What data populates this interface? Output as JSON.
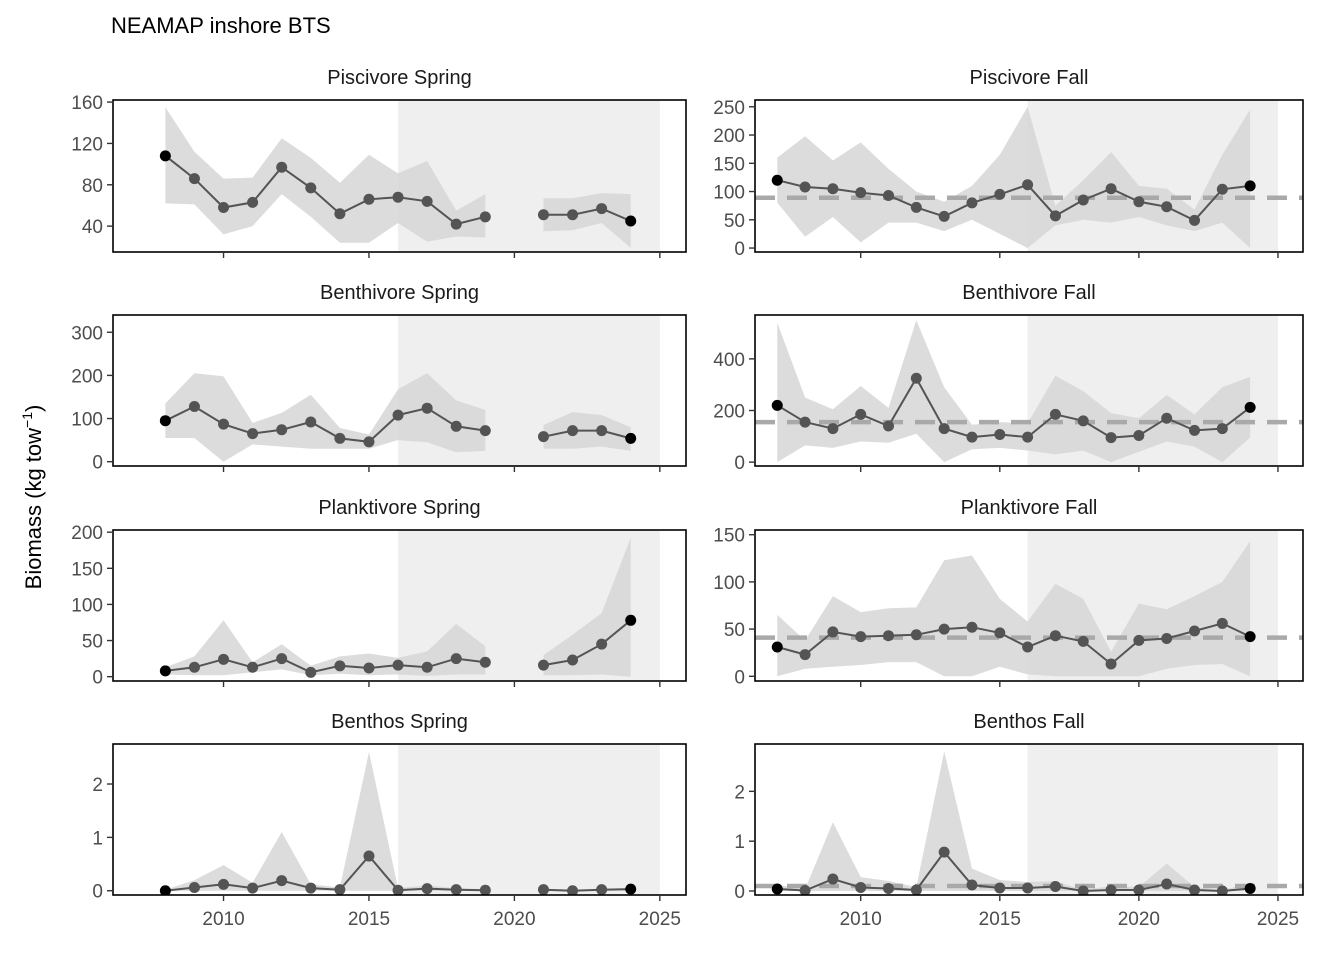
{
  "title": "NEAMAP inshore BTS",
  "y_axis_label": "Biomass (kg tow⁻¹)",
  "colors": {
    "band": "#d6d6d6",
    "recent_shade": "#efefef",
    "line": "#545454",
    "point": "#545454",
    "endpoint": "#000000",
    "mean_line": "#a9a9a9",
    "frame": "#000000"
  },
  "chart_data": [
    {
      "panel": "Piscivore Spring",
      "type": "line",
      "xlim": [
        2006.2,
        2025.9
      ],
      "x_ticks": [
        2010,
        2015,
        2020,
        2025
      ],
      "ylim": [
        15,
        162
      ],
      "y_ticks": [
        40,
        80,
        120,
        160
      ],
      "shade_x": [
        2016,
        2025
      ],
      "mean_line": null,
      "series": [
        {
          "x": [
            2008,
            2009,
            2010,
            2011,
            2012,
            2013,
            2014,
            2015,
            2016,
            2017,
            2018,
            2019
          ],
          "y": [
            108,
            86,
            58,
            63,
            97,
            77,
            52,
            66,
            68,
            64,
            42,
            49
          ],
          "lo": [
            62,
            61,
            32,
            40,
            71,
            49,
            24,
            24,
            43,
            25,
            30,
            29
          ],
          "hi": [
            155,
            112,
            86,
            87,
            125,
            106,
            82,
            109,
            91,
            103,
            55,
            71
          ]
        },
        {
          "x": [
            2021,
            2022,
            2023,
            2024
          ],
          "y": [
            51,
            51,
            57,
            45
          ],
          "lo": [
            35,
            36,
            43,
            19
          ],
          "hi": [
            67,
            67,
            72,
            71
          ]
        }
      ]
    },
    {
      "panel": "Piscivore Fall",
      "type": "line",
      "xlim": [
        2006.2,
        2025.9
      ],
      "x_ticks": [
        2010,
        2015,
        2020,
        2025
      ],
      "ylim": [
        -7,
        262
      ],
      "y_ticks": [
        0,
        50,
        100,
        150,
        200,
        250
      ],
      "shade_x": [
        2016,
        2025
      ],
      "mean_line": 89,
      "series": [
        {
          "x": [
            2007,
            2008,
            2009,
            2010,
            2011,
            2012,
            2013,
            2014,
            2015,
            2016,
            2017,
            2018,
            2019,
            2020,
            2021,
            2022,
            2023,
            2024
          ],
          "y": [
            120,
            108,
            105,
            98,
            93,
            72,
            56,
            80,
            95,
            112,
            57,
            85,
            105,
            82,
            73,
            49,
            104,
            110
          ],
          "lo": [
            80,
            20,
            55,
            10,
            45,
            45,
            30,
            50,
            25,
            0,
            40,
            50,
            45,
            55,
            40,
            30,
            45,
            0
          ],
          "hi": [
            160,
            198,
            155,
            187,
            140,
            100,
            82,
            110,
            165,
            250,
            75,
            120,
            170,
            110,
            105,
            68,
            165,
            245
          ]
        }
      ]
    },
    {
      "panel": "Benthivore Spring",
      "type": "line",
      "xlim": [
        2006.2,
        2025.9
      ],
      "x_ticks": [
        2010,
        2015,
        2020,
        2025
      ],
      "ylim": [
        -10,
        340
      ],
      "y_ticks": [
        0,
        100,
        200,
        300
      ],
      "shade_x": [
        2016,
        2025
      ],
      "mean_line": null,
      "series": [
        {
          "x": [
            2008,
            2009,
            2010,
            2011,
            2012,
            2013,
            2014,
            2015,
            2016,
            2017,
            2018,
            2019
          ],
          "y": [
            95,
            128,
            87,
            65,
            74,
            92,
            54,
            46,
            108,
            124,
            82,
            72
          ],
          "lo": [
            55,
            55,
            0,
            40,
            35,
            30,
            30,
            30,
            50,
            45,
            22,
            25
          ],
          "hi": [
            135,
            205,
            198,
            90,
            113,
            155,
            78,
            63,
            168,
            205,
            142,
            120
          ]
        },
        {
          "x": [
            2021,
            2022,
            2023,
            2024
          ],
          "y": [
            58,
            72,
            72,
            54
          ],
          "lo": [
            30,
            30,
            35,
            25
          ],
          "hi": [
            85,
            115,
            108,
            80
          ]
        }
      ]
    },
    {
      "panel": "Benthivore Fall",
      "type": "line",
      "xlim": [
        2006.2,
        2025.9
      ],
      "x_ticks": [
        2010,
        2015,
        2020,
        2025
      ],
      "ylim": [
        -15,
        570
      ],
      "y_ticks": [
        0,
        200,
        400
      ],
      "shade_x": [
        2016,
        2025
      ],
      "mean_line": 155,
      "series": [
        {
          "x": [
            2007,
            2008,
            2009,
            2010,
            2011,
            2012,
            2013,
            2014,
            2015,
            2016,
            2017,
            2018,
            2019,
            2020,
            2021,
            2022,
            2023,
            2024
          ],
          "y": [
            220,
            155,
            130,
            185,
            140,
            325,
            130,
            97,
            107,
            97,
            185,
            160,
            95,
            103,
            170,
            123,
            130,
            212
          ],
          "lo": [
            0,
            65,
            55,
            80,
            75,
            110,
            0,
            50,
            55,
            45,
            30,
            45,
            0,
            40,
            80,
            60,
            0,
            95
          ],
          "hi": [
            540,
            250,
            205,
            295,
            210,
            550,
            290,
            145,
            155,
            150,
            335,
            275,
            190,
            170,
            260,
            185,
            290,
            330
          ]
        }
      ]
    },
    {
      "panel": "Planktivore Spring",
      "type": "line",
      "xlim": [
        2006.2,
        2025.9
      ],
      "x_ticks": [
        2010,
        2015,
        2020,
        2025
      ],
      "ylim": [
        -6,
        203
      ],
      "y_ticks": [
        0,
        50,
        100,
        150,
        200
      ],
      "shade_x": [
        2016,
        2025
      ],
      "mean_line": null,
      "series": [
        {
          "x": [
            2008,
            2009,
            2010,
            2011,
            2012,
            2013,
            2014,
            2015,
            2016,
            2017,
            2018,
            2019
          ],
          "y": [
            8,
            13,
            24,
            13,
            25,
            6,
            15,
            12,
            16,
            13,
            25,
            20
          ],
          "lo": [
            3,
            2,
            2,
            6,
            10,
            2,
            4,
            2,
            3,
            1,
            3,
            3
          ],
          "hi": [
            13,
            28,
            78,
            20,
            45,
            15,
            28,
            32,
            26,
            35,
            73,
            42
          ]
        },
        {
          "x": [
            2021,
            2022,
            2023,
            2024
          ],
          "y": [
            16,
            23,
            45,
            78
          ],
          "lo": [
            2,
            2,
            3,
            0
          ],
          "hi": [
            30,
            58,
            88,
            192
          ]
        }
      ]
    },
    {
      "panel": "Planktivore Fall",
      "type": "line",
      "xlim": [
        2006.2,
        2025.9
      ],
      "x_ticks": [
        2010,
        2015,
        2020,
        2025
      ],
      "ylim": [
        -5,
        155
      ],
      "y_ticks": [
        0,
        50,
        100,
        150
      ],
      "shade_x": [
        2016,
        2025
      ],
      "mean_line": 41,
      "series": [
        {
          "x": [
            2007,
            2008,
            2009,
            2010,
            2011,
            2012,
            2013,
            2014,
            2015,
            2016,
            2017,
            2018,
            2019,
            2020,
            2021,
            2022,
            2023,
            2024
          ],
          "y": [
            31,
            23,
            47,
            42,
            43,
            44,
            50,
            52,
            46,
            31,
            43,
            37,
            13,
            38,
            40,
            48,
            56,
            42
          ],
          "lo": [
            0,
            8,
            10,
            12,
            15,
            15,
            0,
            0,
            10,
            2,
            0,
            0,
            0,
            0,
            8,
            12,
            13,
            0
          ],
          "hi": [
            65,
            38,
            85,
            68,
            72,
            73,
            123,
            128,
            82,
            58,
            98,
            82,
            26,
            77,
            71,
            85,
            100,
            143
          ]
        }
      ]
    },
    {
      "panel": "Benthos Spring",
      "type": "line",
      "xlim": [
        2006.2,
        2025.9
      ],
      "x_ticks": [
        2010,
        2015,
        2020,
        2025
      ],
      "ylim": [
        -0.08,
        2.75
      ],
      "y_ticks": [
        0,
        1,
        2
      ],
      "shade_x": [
        2016,
        2025
      ],
      "mean_line": null,
      "series": [
        {
          "x": [
            2008,
            2009,
            2010,
            2011,
            2012,
            2013,
            2014,
            2015,
            2016,
            2017,
            2018,
            2019
          ],
          "y": [
            0,
            0.06,
            0.12,
            0.05,
            0.19,
            0.05,
            0.02,
            0.65,
            0.01,
            0.04,
            0.02,
            0.01
          ],
          "lo": [
            0,
            0,
            0,
            0,
            0,
            0,
            0,
            0,
            0,
            0,
            0,
            0
          ],
          "hi": [
            0.02,
            0.2,
            0.48,
            0.15,
            1.1,
            0.12,
            0.06,
            2.6,
            0.05,
            0.1,
            0.05,
            0.03
          ]
        },
        {
          "x": [
            2021,
            2022,
            2023,
            2024
          ],
          "y": [
            0.02,
            0,
            0.02,
            0.03
          ],
          "lo": [
            0,
            0,
            0,
            0
          ],
          "hi": [
            0.04,
            0.02,
            0.04,
            0.05
          ]
        }
      ]
    },
    {
      "panel": "Benthos Fall",
      "type": "line",
      "xlim": [
        2006.2,
        2025.9
      ],
      "x_ticks": [
        2010,
        2015,
        2020,
        2025
      ],
      "ylim": [
        -0.08,
        2.95
      ],
      "y_ticks": [
        0,
        1,
        2
      ],
      "shade_x": [
        2016,
        2025
      ],
      "mean_line": 0.1,
      "series": [
        {
          "x": [
            2007,
            2008,
            2009,
            2010,
            2011,
            2012,
            2013,
            2014,
            2015,
            2016,
            2017,
            2018,
            2019,
            2020,
            2021,
            2022,
            2023,
            2024
          ],
          "y": [
            0.04,
            0.01,
            0.24,
            0.07,
            0.05,
            0.02,
            0.78,
            0.12,
            0.06,
            0.06,
            0.09,
            0,
            0.02,
            0.02,
            0.14,
            0.02,
            0,
            0.05
          ],
          "lo": [
            0,
            0,
            0,
            0,
            0,
            0,
            0,
            0,
            0,
            0,
            0,
            0,
            0,
            0,
            0,
            0,
            0,
            0
          ],
          "hi": [
            0.12,
            0.04,
            1.38,
            0.28,
            0.2,
            0.08,
            2.8,
            0.45,
            0.22,
            0.18,
            0.2,
            0.02,
            0.1,
            0.08,
            0.55,
            0.08,
            0.02,
            0.15
          ]
        }
      ]
    }
  ]
}
